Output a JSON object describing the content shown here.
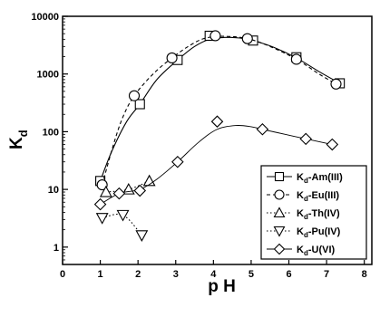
{
  "chart_data": {
    "type": "scatter",
    "xlabel": "p H",
    "ylabel": "K",
    "ylabel_subscript": "d",
    "xlim": [
      0,
      8.2
    ],
    "ylim": [
      0.5,
      10000
    ],
    "yscale": "log",
    "x_ticks": [
      "0",
      "1",
      "2",
      "3",
      "4",
      "5",
      "6",
      "7",
      "8"
    ],
    "y_ticks": [
      "1",
      "10",
      "100",
      "1000",
      "10000"
    ],
    "grid": false,
    "legend_position": "bottom-right",
    "series": [
      {
        "name": "K-Am(III)",
        "label_main": "K",
        "label_sub": "d",
        "label_rest": "-Am(III)",
        "marker": "square",
        "line": "solid",
        "color": "#000000",
        "points": [
          [
            1.0,
            14
          ],
          [
            2.05,
            300
          ],
          [
            3.05,
            1750
          ],
          [
            3.9,
            4600
          ],
          [
            5.05,
            3800
          ],
          [
            6.2,
            1950
          ],
          [
            7.35,
            690
          ]
        ],
        "fit": [
          [
            1.0,
            14
          ],
          [
            1.3,
            45
          ],
          [
            1.7,
            150
          ],
          [
            2.05,
            300
          ],
          [
            2.5,
            800
          ],
          [
            3.05,
            1750
          ],
          [
            3.5,
            3000
          ],
          [
            3.9,
            4000
          ],
          [
            4.3,
            4300
          ],
          [
            4.7,
            4200
          ],
          [
            5.05,
            3800
          ],
          [
            5.6,
            2900
          ],
          [
            6.2,
            1900
          ],
          [
            6.8,
            1100
          ],
          [
            7.35,
            690
          ]
        ]
      },
      {
        "name": "K-Eu(III)",
        "label_main": "K",
        "label_sub": "d",
        "label_rest": "-Eu(III)",
        "marker": "circle",
        "line": "dashed",
        "color": "#000000",
        "points": [
          [
            1.05,
            12
          ],
          [
            1.9,
            420
          ],
          [
            2.9,
            1900
          ],
          [
            4.05,
            4600
          ],
          [
            4.9,
            4100
          ],
          [
            6.2,
            1800
          ],
          [
            7.25,
            670
          ]
        ],
        "fit": [
          [
            1.05,
            12
          ],
          [
            1.35,
            60
          ],
          [
            1.6,
            180
          ],
          [
            1.9,
            420
          ],
          [
            2.4,
            1000
          ],
          [
            2.9,
            1900
          ],
          [
            3.4,
            3200
          ],
          [
            3.8,
            4200
          ],
          [
            4.3,
            4500
          ],
          [
            4.9,
            4100
          ],
          [
            5.5,
            3000
          ],
          [
            6.2,
            1800
          ],
          [
            6.8,
            1000
          ],
          [
            7.25,
            670
          ]
        ]
      },
      {
        "name": "K-Th(IV)",
        "label_main": "K",
        "label_sub": "d",
        "label_rest": "-Th(IV)",
        "marker": "triangle-up",
        "line": "dotted",
        "color": "#000000",
        "points": [
          [
            1.15,
            9
          ],
          [
            1.75,
            10
          ],
          [
            2.3,
            14
          ]
        ],
        "fit": [
          [
            1.15,
            9
          ],
          [
            1.75,
            10
          ],
          [
            2.3,
            14
          ]
        ]
      },
      {
        "name": "K-Pu(IV)",
        "label_main": "K",
        "label_sub": "d",
        "label_rest": "-Pu(IV)",
        "marker": "triangle-down",
        "line": "dotted",
        "color": "#000000",
        "points": [
          [
            1.05,
            3.2
          ],
          [
            1.6,
            3.6
          ],
          [
            2.1,
            1.6
          ]
        ],
        "fit": [
          [
            1.05,
            3.2
          ],
          [
            1.6,
            3.6
          ],
          [
            2.1,
            1.6
          ]
        ]
      },
      {
        "name": "K-U(VI)",
        "label_main": "K",
        "label_sub": "d",
        "label_rest": "-U(VI)",
        "marker": "diamond",
        "line": "solid-thin",
        "color": "#000000",
        "points": [
          [
            1.0,
            5.5
          ],
          [
            1.5,
            8.5
          ],
          [
            2.05,
            9.5
          ],
          [
            3.05,
            30
          ],
          [
            4.1,
            150
          ],
          [
            5.3,
            110
          ],
          [
            6.45,
            75
          ],
          [
            7.15,
            60
          ]
        ],
        "fit": [
          [
            1.0,
            5.5
          ],
          [
            1.5,
            8.5
          ],
          [
            2.05,
            10
          ],
          [
            2.5,
            15
          ],
          [
            3.05,
            30
          ],
          [
            3.6,
            65
          ],
          [
            4.1,
            110
          ],
          [
            4.6,
            128
          ],
          [
            5.0,
            122
          ],
          [
            5.3,
            110
          ],
          [
            5.9,
            90
          ],
          [
            6.45,
            75
          ],
          [
            7.15,
            60
          ]
        ]
      }
    ]
  }
}
